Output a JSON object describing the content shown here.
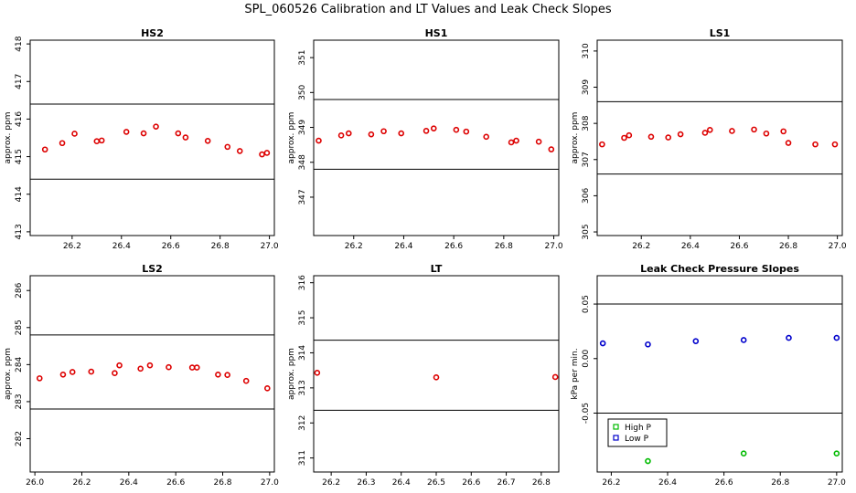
{
  "title": "SPL_060526  Calibration and LT Values and Leak Check Slopes",
  "chart_data": [
    {
      "type": "scatter",
      "title": "HS2",
      "ylabel": "approx. ppm",
      "xlim": [
        26.03,
        27.02
      ],
      "ylim": [
        412.9,
        418.1
      ],
      "xticks": [
        26.2,
        26.4,
        26.6,
        26.8,
        27.0
      ],
      "xtick_labels": [
        "26.2",
        "26.4",
        "26.6",
        "26.8",
        "27.0"
      ],
      "yticks": [
        413,
        414,
        415,
        416,
        417,
        418
      ],
      "ytick_labels": [
        "413",
        "414",
        "415",
        "416",
        "417",
        "418"
      ],
      "hlines": [
        416.4,
        414.4
      ],
      "series": [
        {
          "color": "#dd0000",
          "x": [
            26.09,
            26.16,
            26.21,
            26.3,
            26.32,
            26.42,
            26.49,
            26.54,
            26.63,
            26.66,
            26.75,
            26.83,
            26.88,
            26.97,
            26.99
          ],
          "y": [
            415.19,
            415.36,
            415.61,
            415.41,
            415.43,
            415.66,
            415.62,
            415.8,
            415.62,
            415.51,
            415.42,
            415.26,
            415.15,
            415.06,
            415.1
          ]
        }
      ]
    },
    {
      "type": "scatter",
      "title": "HS1",
      "ylabel": "approx. ppm",
      "xlim": [
        26.04,
        27.02
      ],
      "ylim": [
        345.9,
        351.5
      ],
      "xticks": [
        26.2,
        26.4,
        26.6,
        26.8,
        27.0
      ],
      "xtick_labels": [
        "26.2",
        "26.4",
        "26.6",
        "26.8",
        "27.0"
      ],
      "yticks": [
        347,
        348,
        349,
        350,
        351
      ],
      "ytick_labels": [
        "347",
        "348",
        "349",
        "350",
        "351"
      ],
      "hlines": [
        349.8,
        347.8
      ],
      "series": [
        {
          "color": "#dd0000",
          "x": [
            26.06,
            26.15,
            26.18,
            26.27,
            26.32,
            26.39,
            26.49,
            26.52,
            26.61,
            26.65,
            26.73,
            26.83,
            26.85,
            26.94,
            26.99
          ],
          "y": [
            348.62,
            348.77,
            348.83,
            348.8,
            348.89,
            348.83,
            348.9,
            348.97,
            348.93,
            348.88,
            348.73,
            348.57,
            348.62,
            348.59,
            348.37
          ]
        }
      ]
    },
    {
      "type": "scatter",
      "title": "LS1",
      "ylabel": "approx. ppm",
      "xlim": [
        26.02,
        27.02
      ],
      "ylim": [
        304.9,
        310.3
      ],
      "xticks": [
        26.2,
        26.4,
        26.6,
        26.8,
        27.0
      ],
      "xtick_labels": [
        "26.2",
        "26.4",
        "26.6",
        "26.8",
        "27.0"
      ],
      "yticks": [
        305,
        306,
        307,
        308,
        309,
        310
      ],
      "ytick_labels": [
        "305",
        "306",
        "307",
        "308",
        "309",
        "310"
      ],
      "hlines": [
        308.6,
        306.6
      ],
      "series": [
        {
          "color": "#dd0000",
          "x": [
            26.04,
            26.13,
            26.15,
            26.24,
            26.31,
            26.36,
            26.46,
            26.48,
            26.57,
            26.66,
            26.71,
            26.78,
            26.8,
            26.91,
            26.99
          ],
          "y": [
            307.42,
            307.6,
            307.67,
            307.63,
            307.61,
            307.7,
            307.74,
            307.82,
            307.79,
            307.83,
            307.72,
            307.78,
            307.46,
            307.42,
            307.42
          ]
        }
      ]
    },
    {
      "type": "scatter",
      "title": "LS2",
      "ylabel": "approx. ppm",
      "xlim": [
        25.98,
        27.02
      ],
      "ylim": [
        281.1,
        286.4
      ],
      "xticks": [
        26.0,
        26.2,
        26.4,
        26.6,
        26.8,
        27.0
      ],
      "xtick_labels": [
        "26.0",
        "26.2",
        "26.4",
        "26.6",
        "26.8",
        "27.0"
      ],
      "yticks": [
        282,
        283,
        284,
        285,
        286
      ],
      "ytick_labels": [
        "282",
        "283",
        "284",
        "285",
        "286"
      ],
      "hlines": [
        284.8,
        282.8
      ],
      "series": [
        {
          "color": "#dd0000",
          "x": [
            26.02,
            26.12,
            26.16,
            26.24,
            26.34,
            26.36,
            26.45,
            26.49,
            26.57,
            26.67,
            26.69,
            26.78,
            26.82,
            26.9,
            26.99
          ],
          "y": [
            283.63,
            283.73,
            283.8,
            283.81,
            283.77,
            283.98,
            283.89,
            283.98,
            283.93,
            283.92,
            283.92,
            283.73,
            283.72,
            283.56,
            283.36
          ]
        }
      ]
    },
    {
      "type": "scatter",
      "title": "LT",
      "ylabel": "approx. ppm",
      "xlim": [
        26.15,
        26.85
      ],
      "ylim": [
        310.6,
        316.2
      ],
      "xticks": [
        26.2,
        26.3,
        26.4,
        26.5,
        26.6,
        26.7,
        26.8
      ],
      "xtick_labels": [
        "26.2",
        "26.3",
        "26.4",
        "26.5",
        "26.6",
        "26.7",
        "26.8"
      ],
      "yticks": [
        311,
        312,
        313,
        314,
        315,
        316
      ],
      "ytick_labels": [
        "311",
        "312",
        "313",
        "314",
        "315",
        "316"
      ],
      "hlines": [
        314.36,
        312.36
      ],
      "series": [
        {
          "color": "#dd0000",
          "x": [
            26.16,
            26.5,
            26.84
          ],
          "y": [
            313.43,
            313.3,
            313.31
          ]
        }
      ]
    },
    {
      "type": "scatter",
      "title": "Leak Check Pressure Slopes",
      "ylabel": "kPa per min.",
      "xlim": [
        26.15,
        27.02
      ],
      "ylim": [
        -0.104,
        0.076
      ],
      "xticks": [
        26.2,
        26.4,
        26.6,
        26.8,
        27.0
      ],
      "xtick_labels": [
        "26.2",
        "26.4",
        "26.6",
        "26.8",
        "27.0"
      ],
      "yticks": [
        -0.05,
        0.0,
        0.05
      ],
      "ytick_labels": [
        "-0.05",
        "0.00",
        "0.05"
      ],
      "hlines": [
        0.05,
        -0.05
      ],
      "legend": "bottom-left",
      "series": [
        {
          "name": "High P",
          "color": "#00bb00",
          "x": [
            26.33,
            26.67,
            27.0
          ],
          "y": [
            -0.094,
            -0.087,
            -0.087
          ]
        },
        {
          "name": "Low P",
          "color": "#0000cc",
          "x": [
            26.17,
            26.33,
            26.5,
            26.67,
            26.83,
            27.0
          ],
          "y": [
            0.014,
            0.013,
            0.016,
            0.017,
            0.019,
            0.019
          ]
        }
      ]
    }
  ]
}
